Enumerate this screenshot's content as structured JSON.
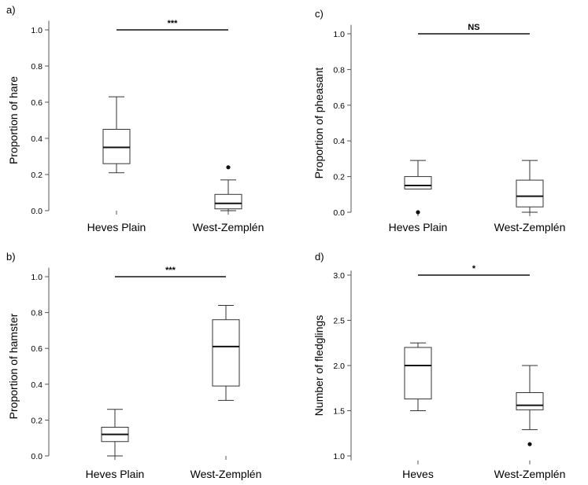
{
  "chart_data": [
    {
      "type": "box",
      "panel": "a)",
      "ylabel": "Proportion of hare",
      "categories": [
        "Heves Plain",
        "West-Zemplén"
      ],
      "yticks": [
        "0.0",
        "0.2",
        "0.4",
        "0.6",
        "0.8",
        "1.0"
      ],
      "ylim": [
        0,
        1.05
      ],
      "boxes": [
        {
          "min": 0.21,
          "q1": 0.26,
          "median": 0.35,
          "q3": 0.45,
          "max": 0.63,
          "outliers": []
        },
        {
          "min": 0.0,
          "q1": 0.01,
          "median": 0.04,
          "q3": 0.09,
          "max": 0.17,
          "outliers": [
            0.24
          ]
        }
      ],
      "significance": "***",
      "sig_level": 1.0
    },
    {
      "type": "box",
      "panel": "c)",
      "ylabel": "Proportion of pheasant",
      "categories": [
        "Heves Plain",
        "West-Zemplén"
      ],
      "yticks": [
        "0.0",
        "0.2",
        "0.4",
        "0.6",
        "0.8",
        "1.0"
      ],
      "ylim": [
        0,
        1.05
      ],
      "boxes": [
        {
          "min": 0.13,
          "q1": 0.13,
          "median": 0.15,
          "q3": 0.2,
          "max": 0.29,
          "outliers": [
            0.0
          ]
        },
        {
          "min": 0.0,
          "q1": 0.03,
          "median": 0.09,
          "q3": 0.18,
          "max": 0.29,
          "outliers": []
        }
      ],
      "significance": "NS",
      "sig_level": 1.0
    },
    {
      "type": "box",
      "panel": "b)",
      "ylabel": "Proportion of hamster",
      "categories": [
        "Heves Plain",
        "West-Zemplén"
      ],
      "yticks": [
        "0.0",
        "0.2",
        "0.4",
        "0.6",
        "0.8",
        "1.0"
      ],
      "ylim": [
        0,
        1.05
      ],
      "boxes": [
        {
          "min": 0.0,
          "q1": 0.08,
          "median": 0.12,
          "q3": 0.16,
          "max": 0.26,
          "outliers": []
        },
        {
          "min": 0.31,
          "q1": 0.39,
          "median": 0.61,
          "q3": 0.76,
          "max": 0.84,
          "outliers": []
        }
      ],
      "significance": "***",
      "sig_level": 1.0
    },
    {
      "type": "box",
      "panel": "d)",
      "ylabel": "Number of fledglings",
      "categories": [
        "Heves",
        "West-Zemplén"
      ],
      "yticks": [
        "1.0",
        "1.5",
        "2.0",
        "2.5",
        "3.0"
      ],
      "ylim": [
        0.95,
        3.05
      ],
      "boxes": [
        {
          "min": 1.5,
          "q1": 1.63,
          "median": 2.0,
          "q3": 2.2,
          "max": 2.25,
          "outliers": []
        },
        {
          "min": 1.29,
          "q1": 1.51,
          "median": 1.56,
          "q3": 1.7,
          "max": 2.0,
          "outliers": [
            1.13
          ]
        }
      ],
      "significance": "*",
      "sig_level": 3.0
    }
  ]
}
